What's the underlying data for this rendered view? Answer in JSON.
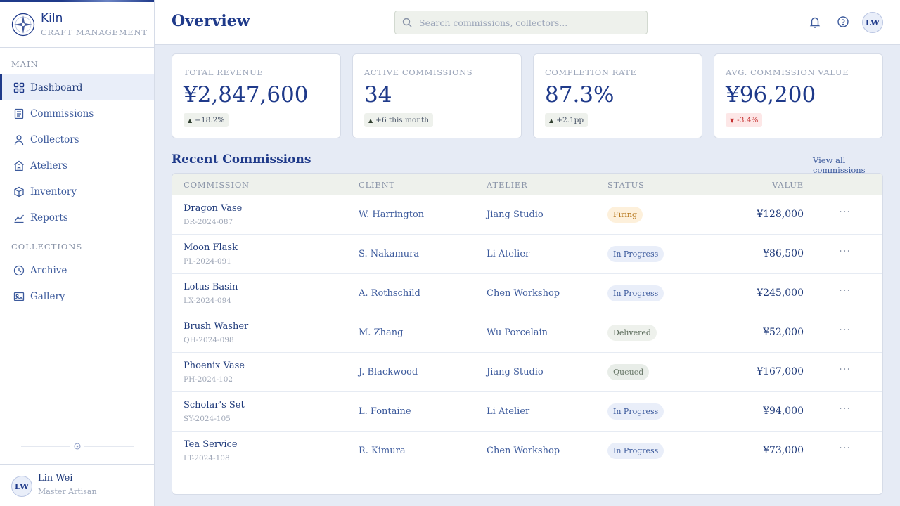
{
  "brand": {
    "name": "Kiln",
    "subtitle": "CRAFT MANAGEMENT"
  },
  "sidebar": {
    "sections": [
      {
        "title": "MAIN"
      },
      {
        "title": "COLLECTIONS"
      }
    ],
    "items": [
      {
        "label": "Dashboard",
        "icon": "grid-icon",
        "active": true
      },
      {
        "label": "Commissions",
        "icon": "document-icon"
      },
      {
        "label": "Collectors",
        "icon": "user-icon"
      },
      {
        "label": "Ateliers",
        "icon": "building-icon"
      },
      {
        "label": "Inventory",
        "icon": "cube-icon"
      },
      {
        "label": "Reports",
        "icon": "chart-line-icon"
      },
      {
        "label": "Archive",
        "icon": "clock-icon"
      },
      {
        "label": "Gallery",
        "icon": "image-icon"
      }
    ]
  },
  "user": {
    "initials": "LW",
    "name": "Lin Wei",
    "role": "Master Artisan"
  },
  "header": {
    "title": "Overview",
    "search_placeholder": "Search commissions, collectors...",
    "avatar_initials": "LW"
  },
  "kpis": [
    {
      "label": "TOTAL REVENUE",
      "value": "¥2,847,600",
      "delta": "+18.2%",
      "trend": "up"
    },
    {
      "label": "ACTIVE COMMISSIONS",
      "value": "34",
      "delta": "+6 this month",
      "trend": "up"
    },
    {
      "label": "COMPLETION RATE",
      "value": "87.3%",
      "delta": "+2.1pp",
      "trend": "up"
    },
    {
      "label": "AVG. COMMISSION VALUE",
      "value": "¥96,200",
      "delta": "-3.4%",
      "trend": "down"
    }
  ],
  "recent": {
    "title": "Recent Commissions",
    "view_all": "View all commissions",
    "columns": [
      "COMMISSION",
      "CLIENT",
      "ATELIER",
      "STATUS",
      "VALUE"
    ],
    "rows": [
      {
        "name": "Dragon Vase",
        "code": "DR-2024-087",
        "client": "W. Harrington",
        "atelier": "Jiang Studio",
        "status": "Firing",
        "value": "¥128,000"
      },
      {
        "name": "Moon Flask",
        "code": "PL-2024-091",
        "client": "S. Nakamura",
        "atelier": "Li Atelier",
        "status": "In Progress",
        "value": "¥86,500"
      },
      {
        "name": "Lotus Basin",
        "code": "LX-2024-094",
        "client": "A. Rothschild",
        "atelier": "Chen Workshop",
        "status": "In Progress",
        "value": "¥245,000"
      },
      {
        "name": "Brush Washer",
        "code": "QH-2024-098",
        "client": "M. Zhang",
        "atelier": "Wu Porcelain",
        "status": "Delivered",
        "value": "¥52,000"
      },
      {
        "name": "Phoenix Vase",
        "code": "PH-2024-102",
        "client": "J. Blackwood",
        "atelier": "Jiang Studio",
        "status": "Queued",
        "value": "¥167,000"
      },
      {
        "name": "Scholar's Set",
        "code": "SY-2024-105",
        "client": "L. Fontaine",
        "atelier": "Li Atelier",
        "status": "In Progress",
        "value": "¥94,000"
      },
      {
        "name": "Tea Service",
        "code": "LT-2024-108",
        "client": "R. Kimura",
        "atelier": "Chen Workshop",
        "status": "In Progress",
        "value": "¥73,000"
      }
    ]
  },
  "colors": {
    "accent": "#1f3a8a",
    "background": "#e6ebf5",
    "firing": "#b7791f",
    "negative": "#c53030"
  }
}
